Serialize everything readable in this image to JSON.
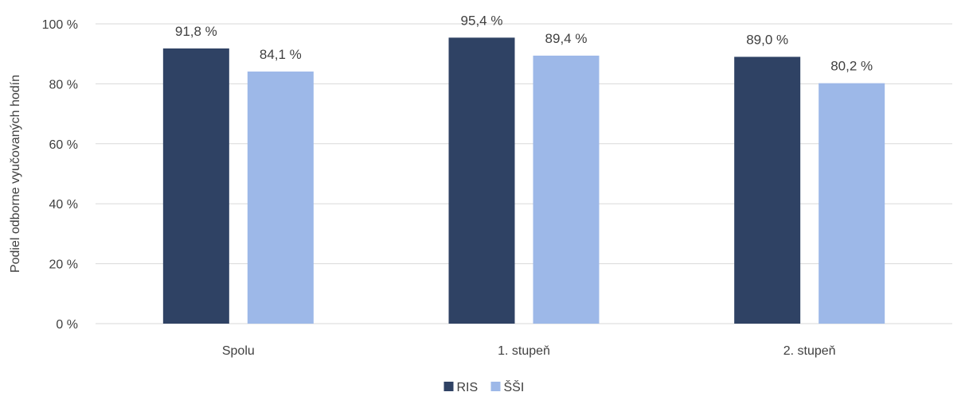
{
  "chart_data": {
    "type": "bar",
    "title": "",
    "xlabel": "",
    "ylabel": "Podiel odborne vyučovaných hodín",
    "ylim": [
      0,
      100
    ],
    "yticks": [
      0,
      20,
      40,
      60,
      80,
      100
    ],
    "ytick_labels": [
      "0 %",
      "20 %",
      "40 %",
      "60 %",
      "80 %",
      "100 %"
    ],
    "grid": true,
    "legend_position": "bottom",
    "categories": [
      "Spolu",
      "1. stupeň",
      "2. stupeň"
    ],
    "series": [
      {
        "name": "RIS",
        "color": "#2f4264",
        "values": [
          91.8,
          95.4,
          89.0
        ],
        "labels": [
          "91,8 %",
          "95,4 %",
          "89,0 %"
        ]
      },
      {
        "name": "ŠŠI",
        "color": "#9db8e8",
        "values": [
          84.1,
          89.4,
          80.2
        ],
        "labels": [
          "84,1 %",
          "89,4 %",
          "80,2 %"
        ]
      }
    ]
  }
}
